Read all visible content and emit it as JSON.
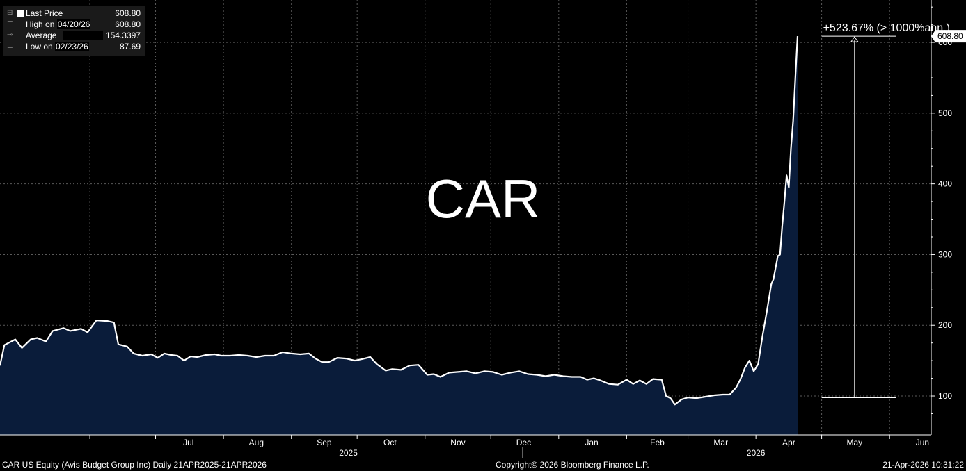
{
  "legend": {
    "last_price": {
      "label": "Last Price",
      "value": "608.80"
    },
    "high": {
      "label_prefix": "High on",
      "date": "04/20/26",
      "value": "608.80"
    },
    "average": {
      "label": "Average",
      "value": "154.3397"
    },
    "low": {
      "label_prefix": "Low on",
      "date": "02/23/26",
      "value": "87.69"
    }
  },
  "footer": {
    "left": "CAR US Equity (Avis Budget Group Inc) Daily 21APR2025-21APR2026",
    "center": "Copyright© 2026 Bloomberg Finance L.P.",
    "right": "21-Apr-2026 10:31:22"
  },
  "colors": {
    "background": "#000000",
    "line": "#ffffff",
    "fill": "#0a1c3a",
    "grid": "#5a5a5a"
  },
  "chart_data": {
    "type": "area",
    "title": "CAR",
    "x_start": "2025-04-21",
    "x_end": "2026-06-20",
    "ylim": [
      45,
      660
    ],
    "y_ticks": [
      100,
      200,
      300,
      400,
      500,
      600
    ],
    "y_axis_position": "right",
    "grid": true,
    "month_labels": [
      {
        "label": "Jul",
        "date": "2025-07-16"
      },
      {
        "label": "Aug",
        "date": "2025-08-16"
      },
      {
        "label": "Sep",
        "date": "2025-09-16"
      },
      {
        "label": "Oct",
        "date": "2025-10-16"
      },
      {
        "label": "Nov",
        "date": "2025-11-16"
      },
      {
        "label": "Dec",
        "date": "2025-12-16"
      },
      {
        "label": "Jan",
        "date": "2026-01-16"
      },
      {
        "label": "Feb",
        "date": "2026-02-15"
      },
      {
        "label": "Mar",
        "date": "2026-03-16"
      },
      {
        "label": "Apr",
        "date": "2026-04-16"
      },
      {
        "label": "May",
        "date": "2026-05-16"
      },
      {
        "label": "Jun",
        "date": "2026-06-16"
      }
    ],
    "year_labels": [
      {
        "label": "2025",
        "date": "2025-09-27"
      },
      {
        "label": "2026",
        "date": "2026-04-01"
      }
    ],
    "series": [
      {
        "name": "Last Price",
        "points": [
          [
            "2025-04-21",
            143
          ],
          [
            "2025-04-23",
            172
          ],
          [
            "2025-04-28",
            180
          ],
          [
            "2025-05-01",
            168
          ],
          [
            "2025-05-05",
            180
          ],
          [
            "2025-05-08",
            182
          ],
          [
            "2025-05-12",
            177
          ],
          [
            "2025-05-15",
            192
          ],
          [
            "2025-05-20",
            196
          ],
          [
            "2025-05-23",
            192
          ],
          [
            "2025-05-28",
            195
          ],
          [
            "2025-05-31",
            190
          ],
          [
            "2025-06-04",
            207
          ],
          [
            "2025-06-09",
            206
          ],
          [
            "2025-06-12",
            204
          ],
          [
            "2025-06-14",
            173
          ],
          [
            "2025-06-18",
            170
          ],
          [
            "2025-06-21",
            160
          ],
          [
            "2025-06-25",
            157
          ],
          [
            "2025-06-29",
            159
          ],
          [
            "2025-07-02",
            154
          ],
          [
            "2025-07-05",
            160
          ],
          [
            "2025-07-08",
            158
          ],
          [
            "2025-07-11",
            157
          ],
          [
            "2025-07-14",
            150
          ],
          [
            "2025-07-17",
            156
          ],
          [
            "2025-07-20",
            155
          ],
          [
            "2025-07-24",
            158
          ],
          [
            "2025-07-28",
            159
          ],
          [
            "2025-07-31",
            157
          ],
          [
            "2025-08-04",
            157
          ],
          [
            "2025-08-08",
            158
          ],
          [
            "2025-08-12",
            157
          ],
          [
            "2025-08-16",
            155
          ],
          [
            "2025-08-20",
            157
          ],
          [
            "2025-08-24",
            157
          ],
          [
            "2025-08-28",
            162
          ],
          [
            "2025-09-01",
            160
          ],
          [
            "2025-09-05",
            159
          ],
          [
            "2025-09-09",
            160
          ],
          [
            "2025-09-12",
            153
          ],
          [
            "2025-09-15",
            148
          ],
          [
            "2025-09-18",
            148
          ],
          [
            "2025-09-22",
            154
          ],
          [
            "2025-09-26",
            153
          ],
          [
            "2025-09-30",
            150
          ],
          [
            "2025-10-03",
            152
          ],
          [
            "2025-10-07",
            155
          ],
          [
            "2025-10-10",
            145
          ],
          [
            "2025-10-14",
            136
          ],
          [
            "2025-10-17",
            138
          ],
          [
            "2025-10-21",
            137
          ],
          [
            "2025-10-25",
            143
          ],
          [
            "2025-10-29",
            144
          ],
          [
            "2025-11-02",
            130
          ],
          [
            "2025-11-05",
            131
          ],
          [
            "2025-11-08",
            127
          ],
          [
            "2025-11-12",
            133
          ],
          [
            "2025-11-16",
            134
          ],
          [
            "2025-11-20",
            135
          ],
          [
            "2025-11-24",
            132
          ],
          [
            "2025-11-28",
            135
          ],
          [
            "2025-12-02",
            134
          ],
          [
            "2025-12-06",
            130
          ],
          [
            "2025-12-10",
            133
          ],
          [
            "2025-12-14",
            135
          ],
          [
            "2025-12-18",
            131
          ],
          [
            "2025-12-22",
            130
          ],
          [
            "2025-12-26",
            128
          ],
          [
            "2025-12-30",
            130
          ],
          [
            "2026-01-03",
            128
          ],
          [
            "2026-01-07",
            127
          ],
          [
            "2026-01-11",
            127
          ],
          [
            "2026-01-14",
            123
          ],
          [
            "2026-01-17",
            125
          ],
          [
            "2026-01-20",
            122
          ],
          [
            "2026-01-24",
            117
          ],
          [
            "2026-01-28",
            116
          ],
          [
            "2026-02-01",
            123
          ],
          [
            "2026-02-04",
            117
          ],
          [
            "2026-02-07",
            122
          ],
          [
            "2026-02-10",
            117
          ],
          [
            "2026-02-13",
            124
          ],
          [
            "2026-02-17",
            123
          ],
          [
            "2026-02-19",
            100
          ],
          [
            "2026-02-21",
            97
          ],
          [
            "2026-02-23",
            88
          ],
          [
            "2026-02-26",
            95
          ],
          [
            "2026-03-01",
            98
          ],
          [
            "2026-03-05",
            97
          ],
          [
            "2026-03-09",
            99
          ],
          [
            "2026-03-13",
            101
          ],
          [
            "2026-03-17",
            102
          ],
          [
            "2026-03-20",
            102
          ],
          [
            "2026-03-23",
            112
          ],
          [
            "2026-03-25",
            124
          ],
          [
            "2026-03-27",
            140
          ],
          [
            "2026-03-29",
            150
          ],
          [
            "2026-03-31",
            135
          ],
          [
            "2026-04-02",
            145
          ],
          [
            "2026-04-04",
            185
          ],
          [
            "2026-04-06",
            220
          ],
          [
            "2026-04-08",
            258
          ],
          [
            "2026-04-09",
            265
          ],
          [
            "2026-04-11",
            298
          ],
          [
            "2026-04-12",
            300
          ],
          [
            "2026-04-13",
            340
          ],
          [
            "2026-04-14",
            375
          ],
          [
            "2026-04-15",
            412
          ],
          [
            "2026-04-16",
            395
          ],
          [
            "2026-04-17",
            450
          ],
          [
            "2026-04-18",
            490
          ],
          [
            "2026-04-19",
            550
          ],
          [
            "2026-04-20",
            608.8
          ]
        ]
      }
    ],
    "last_value_label": "608.80",
    "annotation": {
      "text": "+523.67% (> 1000%ann.)",
      "low_value": 97.6,
      "high_value": 608.8,
      "date_from": "2026-05-01",
      "date_to": "2026-06-04",
      "arrow_date": "2026-05-16"
    }
  }
}
